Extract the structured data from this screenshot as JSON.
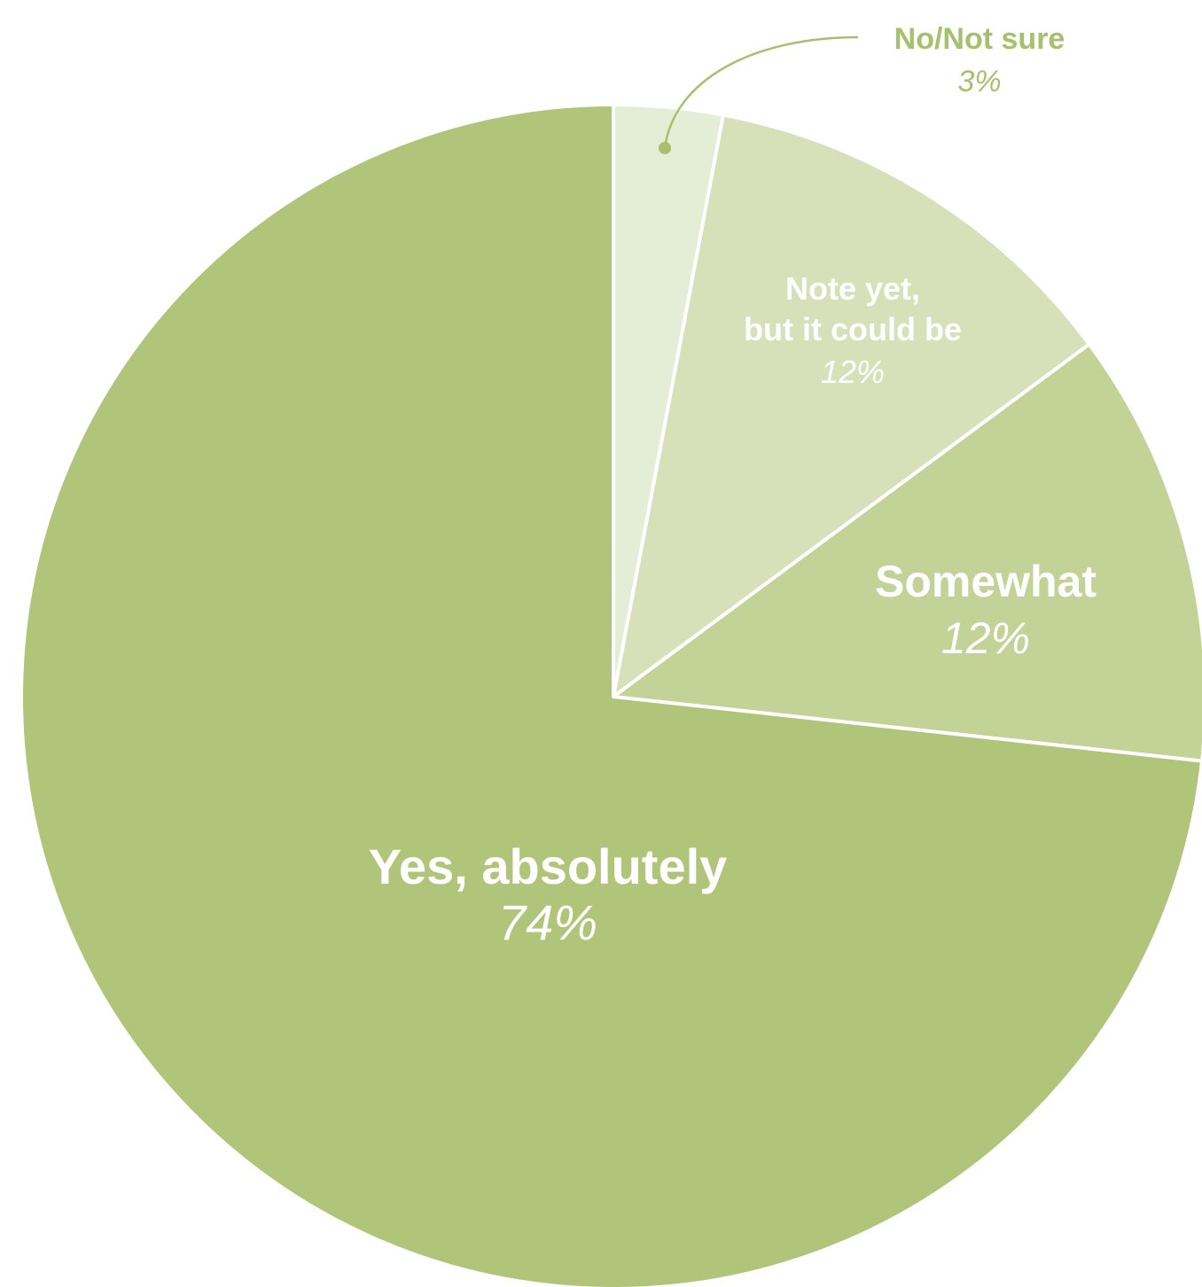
{
  "chart_data": {
    "type": "pie",
    "start_angle_deg": 0,
    "direction": "clockwise",
    "slices": [
      {
        "label": "No/Not sure",
        "value": 3,
        "display": "3%",
        "color": "#e4edd6",
        "label_color": "#a7c06e",
        "label_position": "outside"
      },
      {
        "label_lines": [
          "Note yet,",
          "but it could be"
        ],
        "value": 12,
        "display": "12%",
        "color": "#d7e0b9",
        "label_color": "#ffffff",
        "label_position": "inside"
      },
      {
        "label": "Somewhat",
        "value": 12,
        "display": "12%",
        "color": "#c3d297",
        "label_color": "#ffffff",
        "label_position": "inside"
      },
      {
        "label": "Yes, absolutely",
        "value": 74,
        "display": "74%",
        "color": "#b0c57a",
        "label_color": "#ffffff",
        "label_position": "inside"
      }
    ],
    "slice_border_color": "#ffffff",
    "leader_line_color": "#a7c06e"
  }
}
